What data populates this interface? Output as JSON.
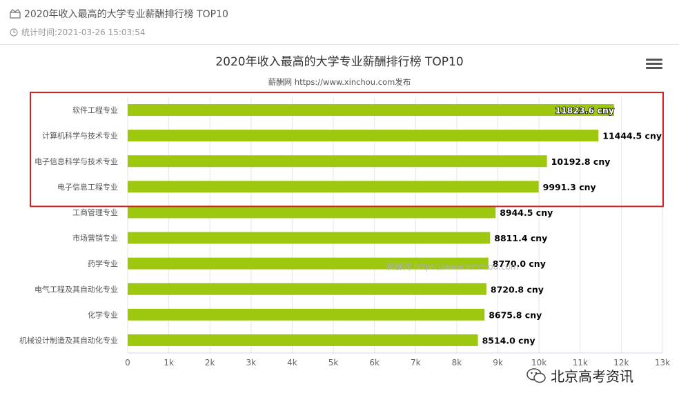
{
  "header": {
    "title": "2020年收入最高的大学专业薪酬排行榜 TOP10",
    "time_label": "统计时间:2021-03-26 15:03:54"
  },
  "menu": {
    "icon": "hamburger-menu-icon"
  },
  "watermark_corner": {
    "text": "北京高考资讯",
    "icon": "wechat-icon"
  },
  "colors": {
    "bar": "#9dc80f",
    "highlight_box": "#d81e1e",
    "grid": "#e6e6e6"
  },
  "chart_data": {
    "type": "bar",
    "orientation": "horizontal",
    "title": "2020年收入最高的大学专业薪酬排行榜 TOP10",
    "subtitle": "薪酬网 https://www.xinchou.com发布",
    "watermark": "薪酬网 https://www.xinchou.com",
    "categories": [
      "软件工程专业",
      "计算机科学与技术专业",
      "电子信息科学与技术专业",
      "电子信息工程专业",
      "工商管理专业",
      "市场营销专业",
      "药学专业",
      "电气工程及其自动化专业",
      "化学专业",
      "机械设计制造及其自动化专业"
    ],
    "values": [
      11823.6,
      11444.5,
      10192.8,
      9991.3,
      8944.5,
      8811.4,
      8770.0,
      8720.8,
      8675.8,
      8514.0
    ],
    "data_labels": [
      "11823.6 cny",
      "11444.5 cny",
      "10192.8 cny",
      "9991.3 cny",
      "8944.5 cny",
      "8811.4 cny",
      "8770.0 cny",
      "8720.8 cny",
      "8675.8 cny",
      "8514.0 cny"
    ],
    "x_ticks": [
      "0",
      "1k",
      "2k",
      "3k",
      "4k",
      "5k",
      "6k",
      "7k",
      "8k",
      "9k",
      "10k",
      "11k",
      "12k",
      "13k"
    ],
    "xlim": [
      0,
      13000
    ],
    "grid": true,
    "highlighted_categories": [
      "软件工程专业",
      "计算机科学与技术专业",
      "电子信息科学与技术专业",
      "电子信息工程专业"
    ]
  }
}
